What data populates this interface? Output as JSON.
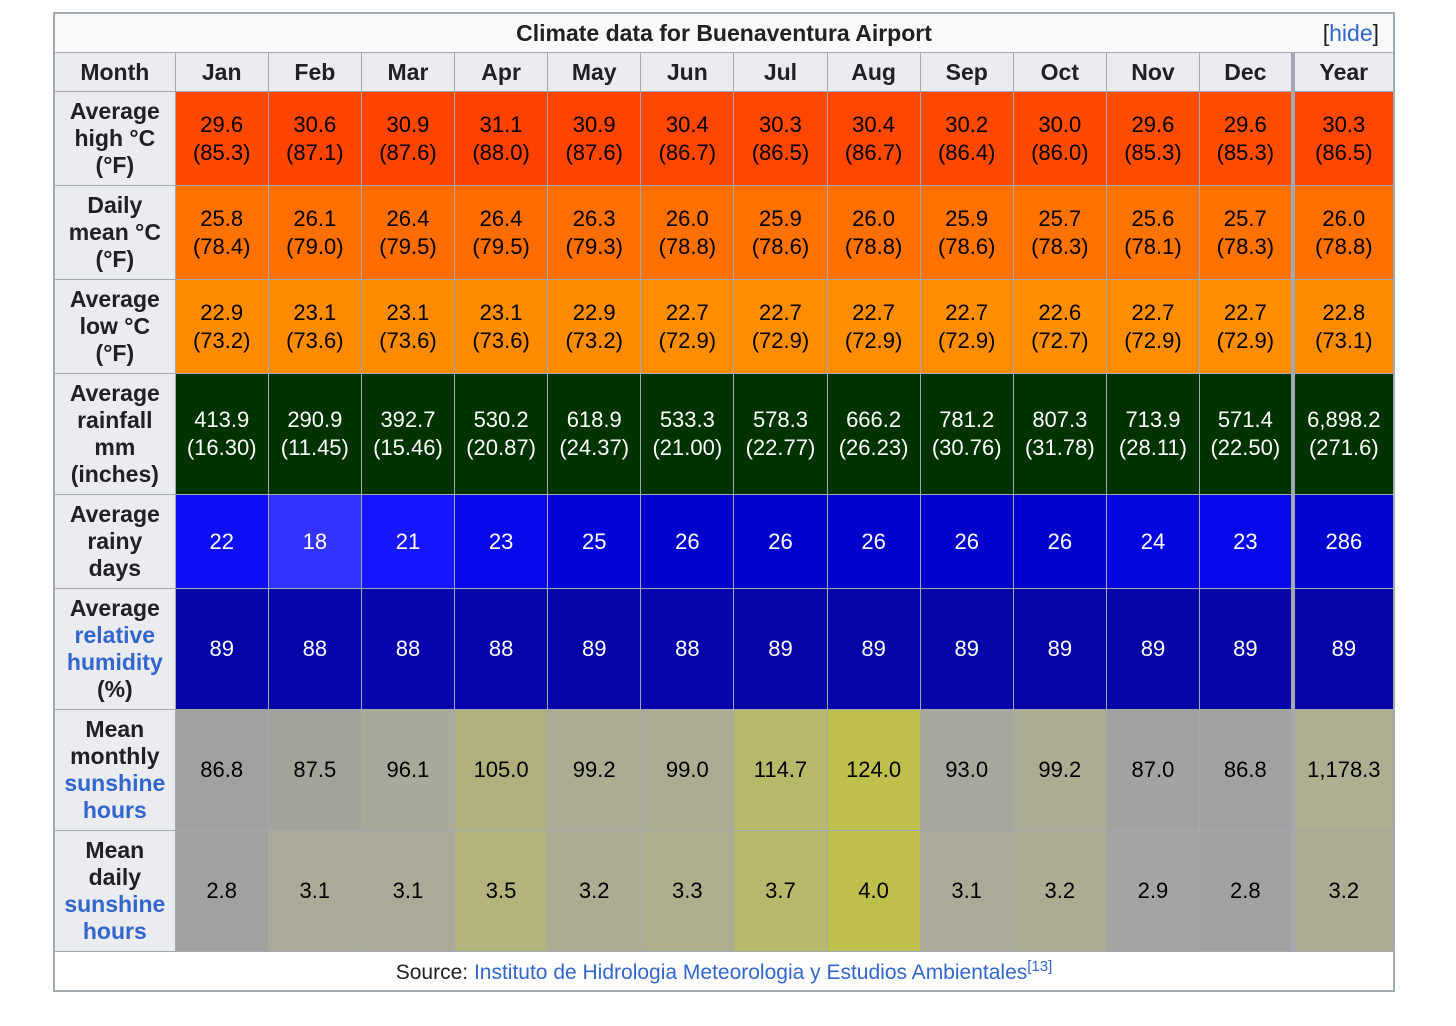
{
  "table": {
    "title": "Climate data for Buenaventura Airport",
    "hide_link": "hide",
    "header_label": "Month",
    "months": [
      "Jan",
      "Feb",
      "Mar",
      "Apr",
      "May",
      "Jun",
      "Jul",
      "Aug",
      "Sep",
      "Oct",
      "Nov",
      "Dec",
      "Year"
    ],
    "rows": [
      {
        "label_parts": [
          {
            "t": "Average"
          },
          {
            "t": "high °C"
          },
          {
            "t": "(°F)"
          }
        ],
        "height": 94,
        "cells": [
          {
            "v": [
              "29.6",
              "(85.3)"
            ],
            "bg": "#ff4a00",
            "fg": "#000000"
          },
          {
            "v": [
              "30.6",
              "(87.1)"
            ],
            "bg": "#ff4400",
            "fg": "#000000"
          },
          {
            "v": [
              "30.9",
              "(87.6)"
            ],
            "bg": "#ff4400",
            "fg": "#000000"
          },
          {
            "v": [
              "31.1",
              "(88.0)"
            ],
            "bg": "#ff4200",
            "fg": "#000000"
          },
          {
            "v": [
              "30.9",
              "(87.6)"
            ],
            "bg": "#ff4400",
            "fg": "#000000"
          },
          {
            "v": [
              "30.4",
              "(86.7)"
            ],
            "bg": "#ff4700",
            "fg": "#000000"
          },
          {
            "v": [
              "30.3",
              "(86.5)"
            ],
            "bg": "#ff4700",
            "fg": "#000000"
          },
          {
            "v": [
              "30.4",
              "(86.7)"
            ],
            "bg": "#ff4700",
            "fg": "#000000"
          },
          {
            "v": [
              "30.2",
              "(86.4)"
            ],
            "bg": "#ff4800",
            "fg": "#000000"
          },
          {
            "v": [
              "30.0",
              "(86.0)"
            ],
            "bg": "#ff4a00",
            "fg": "#000000"
          },
          {
            "v": [
              "29.6",
              "(85.3)"
            ],
            "bg": "#ff4d00",
            "fg": "#000000"
          },
          {
            "v": [
              "29.6",
              "(85.3)"
            ],
            "bg": "#ff4d00",
            "fg": "#000000"
          },
          {
            "v": [
              "30.3",
              "(86.5)"
            ],
            "bg": "#ff4700",
            "fg": "#000000"
          }
        ]
      },
      {
        "label_parts": [
          {
            "t": "Daily"
          },
          {
            "t": "mean °C"
          },
          {
            "t": "(°F)"
          }
        ],
        "height": 94,
        "cells": [
          {
            "v": [
              "25.8",
              "(78.4)"
            ],
            "bg": "#ff7200",
            "fg": "#000000"
          },
          {
            "v": [
              "26.1",
              "(79.0)"
            ],
            "bg": "#ff7000",
            "fg": "#000000"
          },
          {
            "v": [
              "26.4",
              "(79.5)"
            ],
            "bg": "#ff6d00",
            "fg": "#000000"
          },
          {
            "v": [
              "26.4",
              "(79.5)"
            ],
            "bg": "#ff6d00",
            "fg": "#000000"
          },
          {
            "v": [
              "26.3",
              "(79.3)"
            ],
            "bg": "#ff6e00",
            "fg": "#000000"
          },
          {
            "v": [
              "26.0",
              "(78.8)"
            ],
            "bg": "#ff7000",
            "fg": "#000000"
          },
          {
            "v": [
              "25.9",
              "(78.6)"
            ],
            "bg": "#ff7100",
            "fg": "#000000"
          },
          {
            "v": [
              "26.0",
              "(78.8)"
            ],
            "bg": "#ff7000",
            "fg": "#000000"
          },
          {
            "v": [
              "25.9",
              "(78.6)"
            ],
            "bg": "#ff7100",
            "fg": "#000000"
          },
          {
            "v": [
              "25.7",
              "(78.3)"
            ],
            "bg": "#ff7200",
            "fg": "#000000"
          },
          {
            "v": [
              "25.6",
              "(78.1)"
            ],
            "bg": "#ff7300",
            "fg": "#000000"
          },
          {
            "v": [
              "25.7",
              "(78.3)"
            ],
            "bg": "#ff7200",
            "fg": "#000000"
          },
          {
            "v": [
              "26.0",
              "(78.8)"
            ],
            "bg": "#ff7000",
            "fg": "#000000"
          }
        ]
      },
      {
        "label_parts": [
          {
            "t": "Average"
          },
          {
            "t": "low °C"
          },
          {
            "t": "(°F)"
          }
        ],
        "height": 94,
        "cells": [
          {
            "v": [
              "22.9",
              "(73.2)"
            ],
            "bg": "#ff8c00",
            "fg": "#000000"
          },
          {
            "v": [
              "23.1",
              "(73.6)"
            ],
            "bg": "#ff8b00",
            "fg": "#000000"
          },
          {
            "v": [
              "23.1",
              "(73.6)"
            ],
            "bg": "#ff8b00",
            "fg": "#000000"
          },
          {
            "v": [
              "23.1",
              "(73.6)"
            ],
            "bg": "#ff8b00",
            "fg": "#000000"
          },
          {
            "v": [
              "22.9",
              "(73.2)"
            ],
            "bg": "#ff8c00",
            "fg": "#000000"
          },
          {
            "v": [
              "22.7",
              "(72.9)"
            ],
            "bg": "#ff8d00",
            "fg": "#000000"
          },
          {
            "v": [
              "22.7",
              "(72.9)"
            ],
            "bg": "#ff8d00",
            "fg": "#000000"
          },
          {
            "v": [
              "22.7",
              "(72.9)"
            ],
            "bg": "#ff8d00",
            "fg": "#000000"
          },
          {
            "v": [
              "22.7",
              "(72.9)"
            ],
            "bg": "#ff8d00",
            "fg": "#000000"
          },
          {
            "v": [
              "22.6",
              "(72.7)"
            ],
            "bg": "#ff8e00",
            "fg": "#000000"
          },
          {
            "v": [
              "22.7",
              "(72.9)"
            ],
            "bg": "#ff8d00",
            "fg": "#000000"
          },
          {
            "v": [
              "22.7",
              "(72.9)"
            ],
            "bg": "#ff8d00",
            "fg": "#000000"
          },
          {
            "v": [
              "22.8",
              "(73.1)"
            ],
            "bg": "#ff8c00",
            "fg": "#000000"
          }
        ]
      },
      {
        "label_parts": [
          {
            "t": "Average"
          },
          {
            "t": "rainfall"
          },
          {
            "t": "mm"
          },
          {
            "t": "(inches)"
          }
        ],
        "height": 121,
        "cells": [
          {
            "v": [
              "413.9",
              "(16.30)"
            ],
            "bg": "#003300",
            "fg": "#ffffff"
          },
          {
            "v": [
              "290.9",
              "(11.45)"
            ],
            "bg": "#003300",
            "fg": "#ffffff"
          },
          {
            "v": [
              "392.7",
              "(15.46)"
            ],
            "bg": "#003300",
            "fg": "#ffffff"
          },
          {
            "v": [
              "530.2",
              "(20.87)"
            ],
            "bg": "#003300",
            "fg": "#ffffff"
          },
          {
            "v": [
              "618.9",
              "(24.37)"
            ],
            "bg": "#003300",
            "fg": "#ffffff"
          },
          {
            "v": [
              "533.3",
              "(21.00)"
            ],
            "bg": "#003300",
            "fg": "#ffffff"
          },
          {
            "v": [
              "578.3",
              "(22.77)"
            ],
            "bg": "#003300",
            "fg": "#ffffff"
          },
          {
            "v": [
              "666.2",
              "(26.23)"
            ],
            "bg": "#003300",
            "fg": "#ffffff"
          },
          {
            "v": [
              "781.2",
              "(30.76)"
            ],
            "bg": "#003300",
            "fg": "#ffffff"
          },
          {
            "v": [
              "807.3",
              "(31.78)"
            ],
            "bg": "#003300",
            "fg": "#ffffff"
          },
          {
            "v": [
              "713.9",
              "(28.11)"
            ],
            "bg": "#003300",
            "fg": "#ffffff"
          },
          {
            "v": [
              "571.4",
              "(22.50)"
            ],
            "bg": "#003300",
            "fg": "#ffffff"
          },
          {
            "v": [
              "6,898.2",
              "(271.6)"
            ],
            "bg": "#003300",
            "fg": "#ffffff"
          }
        ]
      },
      {
        "label_parts": [
          {
            "t": "Average"
          },
          {
            "t": "rainy"
          },
          {
            "t": "days"
          }
        ],
        "height": 94,
        "cells": [
          {
            "v": [
              "22"
            ],
            "bg": "#0f0ff5",
            "fg": "#ffffff"
          },
          {
            "v": [
              "18"
            ],
            "bg": "#3333ff",
            "fg": "#ffffff"
          },
          {
            "v": [
              "21"
            ],
            "bg": "#1616ff",
            "fg": "#ffffff"
          },
          {
            "v": [
              "23"
            ],
            "bg": "#0808ea",
            "fg": "#ffffff"
          },
          {
            "v": [
              "25"
            ],
            "bg": "#0404d8",
            "fg": "#ffffff"
          },
          {
            "v": [
              "26"
            ],
            "bg": "#0202cc",
            "fg": "#ffffff"
          },
          {
            "v": [
              "26"
            ],
            "bg": "#0202cc",
            "fg": "#ffffff"
          },
          {
            "v": [
              "26"
            ],
            "bg": "#0202cc",
            "fg": "#ffffff"
          },
          {
            "v": [
              "26"
            ],
            "bg": "#0202cc",
            "fg": "#ffffff"
          },
          {
            "v": [
              "26"
            ],
            "bg": "#0202cc",
            "fg": "#ffffff"
          },
          {
            "v": [
              "24"
            ],
            "bg": "#0606e0",
            "fg": "#ffffff"
          },
          {
            "v": [
              "23"
            ],
            "bg": "#0808ea",
            "fg": "#ffffff"
          },
          {
            "v": [
              "286"
            ],
            "bg": "#0303d2",
            "fg": "#ffffff"
          }
        ]
      },
      {
        "label_parts": [
          {
            "t": "Average"
          },
          {
            "t": "relative",
            "link": true
          },
          {
            "t": "humidity",
            "link": true
          },
          {
            "t": "(%)"
          }
        ],
        "height": 121,
        "cells": [
          {
            "v": [
              "89"
            ],
            "bg": "#0505a8",
            "fg": "#ffffff"
          },
          {
            "v": [
              "88"
            ],
            "bg": "#0505ab",
            "fg": "#ffffff"
          },
          {
            "v": [
              "88"
            ],
            "bg": "#0505ab",
            "fg": "#ffffff"
          },
          {
            "v": [
              "88"
            ],
            "bg": "#0505ab",
            "fg": "#ffffff"
          },
          {
            "v": [
              "89"
            ],
            "bg": "#0505a8",
            "fg": "#ffffff"
          },
          {
            "v": [
              "88"
            ],
            "bg": "#0505ab",
            "fg": "#ffffff"
          },
          {
            "v": [
              "89"
            ],
            "bg": "#0505a8",
            "fg": "#ffffff"
          },
          {
            "v": [
              "89"
            ],
            "bg": "#0505a8",
            "fg": "#ffffff"
          },
          {
            "v": [
              "89"
            ],
            "bg": "#0505a8",
            "fg": "#ffffff"
          },
          {
            "v": [
              "89"
            ],
            "bg": "#0505a8",
            "fg": "#ffffff"
          },
          {
            "v": [
              "89"
            ],
            "bg": "#0505a8",
            "fg": "#ffffff"
          },
          {
            "v": [
              "89"
            ],
            "bg": "#0505a8",
            "fg": "#ffffff"
          },
          {
            "v": [
              "89"
            ],
            "bg": "#0505a8",
            "fg": "#ffffff"
          }
        ]
      },
      {
        "label_parts": [
          {
            "t": "Mean"
          },
          {
            "t": "monthly"
          },
          {
            "t": "sunshine",
            "link": true
          },
          {
            "t": "hours",
            "link": true
          }
        ],
        "height": 121,
        "cells": [
          {
            "v": [
              "86.8"
            ],
            "bg": "#a1a1a1",
            "fg": "#000000"
          },
          {
            "v": [
              "87.5"
            ],
            "bg": "#a3a39c",
            "fg": "#000000"
          },
          {
            "v": [
              "96.1"
            ],
            "bg": "#a9a99a",
            "fg": "#000000"
          },
          {
            "v": [
              "105.0"
            ],
            "bg": "#b0b07e",
            "fg": "#000000"
          },
          {
            "v": [
              "99.2"
            ],
            "bg": "#acac93",
            "fg": "#000000"
          },
          {
            "v": [
              "99.0"
            ],
            "bg": "#acac93",
            "fg": "#000000"
          },
          {
            "v": [
              "114.7"
            ],
            "bg": "#b8b86b",
            "fg": "#000000"
          },
          {
            "v": [
              "124.0"
            ],
            "bg": "#bfbf4c",
            "fg": "#000000"
          },
          {
            "v": [
              "93.0"
            ],
            "bg": "#a7a79e",
            "fg": "#000000"
          },
          {
            "v": [
              "99.2"
            ],
            "bg": "#acac93",
            "fg": "#000000"
          },
          {
            "v": [
              "87.0"
            ],
            "bg": "#a2a2a2",
            "fg": "#000000"
          },
          {
            "v": [
              "86.8"
            ],
            "bg": "#a1a1a1",
            "fg": "#000000"
          },
          {
            "v": [
              "1,178.3"
            ],
            "bg": "#aeae91",
            "fg": "#000000"
          }
        ]
      },
      {
        "label_parts": [
          {
            "t": "Mean"
          },
          {
            "t": "daily"
          },
          {
            "t": "sunshine",
            "link": true
          },
          {
            "t": "hours",
            "link": true
          }
        ],
        "height": 121,
        "cells": [
          {
            "v": [
              "2.8"
            ],
            "bg": "#a1a1a1",
            "fg": "#000000"
          },
          {
            "v": [
              "3.1"
            ],
            "bg": "#aaaa96",
            "fg": "#000000"
          },
          {
            "v": [
              "3.1"
            ],
            "bg": "#aaaa96",
            "fg": "#000000"
          },
          {
            "v": [
              "3.5"
            ],
            "bg": "#b3b37c",
            "fg": "#000000"
          },
          {
            "v": [
              "3.2"
            ],
            "bg": "#acac93",
            "fg": "#000000"
          },
          {
            "v": [
              "3.3"
            ],
            "bg": "#aeae8c",
            "fg": "#000000"
          },
          {
            "v": [
              "3.7"
            ],
            "bg": "#b8b86b",
            "fg": "#000000"
          },
          {
            "v": [
              "4.0"
            ],
            "bg": "#bfbf4c",
            "fg": "#000000"
          },
          {
            "v": [
              "3.1"
            ],
            "bg": "#aaaa96",
            "fg": "#000000"
          },
          {
            "v": [
              "3.2"
            ],
            "bg": "#acac93",
            "fg": "#000000"
          },
          {
            "v": [
              "2.9"
            ],
            "bg": "#a4a4a4",
            "fg": "#000000"
          },
          {
            "v": [
              "2.8"
            ],
            "bg": "#a1a1a1",
            "fg": "#000000"
          },
          {
            "v": [
              "3.2"
            ],
            "bg": "#acac93",
            "fg": "#000000"
          }
        ]
      }
    ],
    "source": {
      "prefix": "Source: ",
      "link_text": "Instituto de Hidrologia Meteorologia y Estudios Ambientales",
      "ref": "[13]"
    },
    "colors": {
      "link": "#3366cc",
      "border": "#a2a9b1",
      "header_bg": "#eaecf0"
    }
  }
}
